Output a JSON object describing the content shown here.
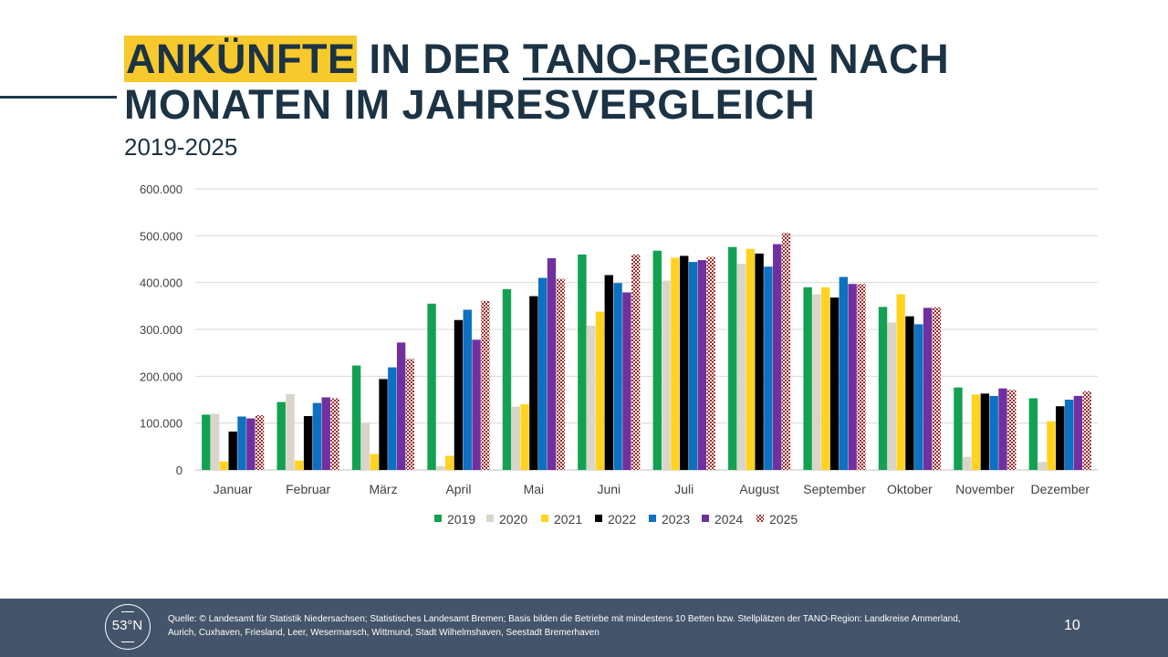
{
  "slide": {
    "title_highlight": "ANKÜNFTE",
    "title_part2": " IN DER ",
    "title_underlined": "TANO-REGION",
    "title_part3": " NACH MONATEN IM JAHRESVERGLEICH",
    "subtitle": "2019-2025",
    "source": "Quelle: © Landesamt für Statistik Niedersachsen; Statistisches Landesamt Bremen; Basis bilden die Betriebe mit mindestens 10 Betten bzw. Stellplätzen der TANO-Region: Landkreise Ammerland, Aurich, Cuxhaven, Friesland, Leer, Wesermarsch, Wittmund, Stadt Wilhelmshaven, Seestadt Bremerhaven",
    "page_number": "10",
    "logo_text": "53°N"
  },
  "chart_data": {
    "type": "bar",
    "categories": [
      "Januar",
      "Februar",
      "März",
      "April",
      "Mai",
      "Juni",
      "Juli",
      "August",
      "September",
      "Oktober",
      "November",
      "Dezember"
    ],
    "ylim": [
      0,
      600000
    ],
    "yticks": [
      0,
      100000,
      200000,
      300000,
      400000,
      500000,
      600000
    ],
    "ytick_labels": [
      "0",
      "100.000",
      "200.000",
      "300.000",
      "400.000",
      "500.000",
      "600.000"
    ],
    "grid": true,
    "legend_position": "bottom",
    "series": [
      {
        "name": "2019",
        "color": "#12a150",
        "values": [
          118000,
          145000,
          223000,
          355000,
          386000,
          460000,
          468000,
          476000,
          390000,
          348000,
          176000,
          153000
        ]
      },
      {
        "name": "2020",
        "color": "#d9d5c8",
        "values": [
          120000,
          162000,
          100000,
          8000,
          135000,
          308000,
          404000,
          440000,
          375000,
          315000,
          28000,
          17000
        ]
      },
      {
        "name": "2021",
        "color": "#ffd320",
        "values": [
          18000,
          20000,
          34000,
          30000,
          140000,
          338000,
          453000,
          472000,
          390000,
          375000,
          161000,
          104000
        ]
      },
      {
        "name": "2022",
        "color": "#000000",
        "values": [
          82000,
          115000,
          194000,
          320000,
          371000,
          416000,
          457000,
          462000,
          368000,
          328000,
          163000,
          136000
        ]
      },
      {
        "name": "2023",
        "color": "#0e70c0",
        "values": [
          114000,
          143000,
          219000,
          342000,
          410000,
          399000,
          444000,
          434000,
          412000,
          311000,
          158000,
          150000
        ]
      },
      {
        "name": "2024",
        "color": "#7030a0",
        "values": [
          110000,
          155000,
          272000,
          278000,
          452000,
          379000,
          448000,
          482000,
          397000,
          346000,
          174000,
          158000
        ]
      },
      {
        "name": "2025",
        "color": "#a02b2b",
        "pattern": "checker",
        "values": [
          117000,
          153000,
          237000,
          361000,
          408000,
          460000,
          455000,
          506000,
          397000,
          347000,
          171000,
          168000
        ]
      }
    ]
  }
}
